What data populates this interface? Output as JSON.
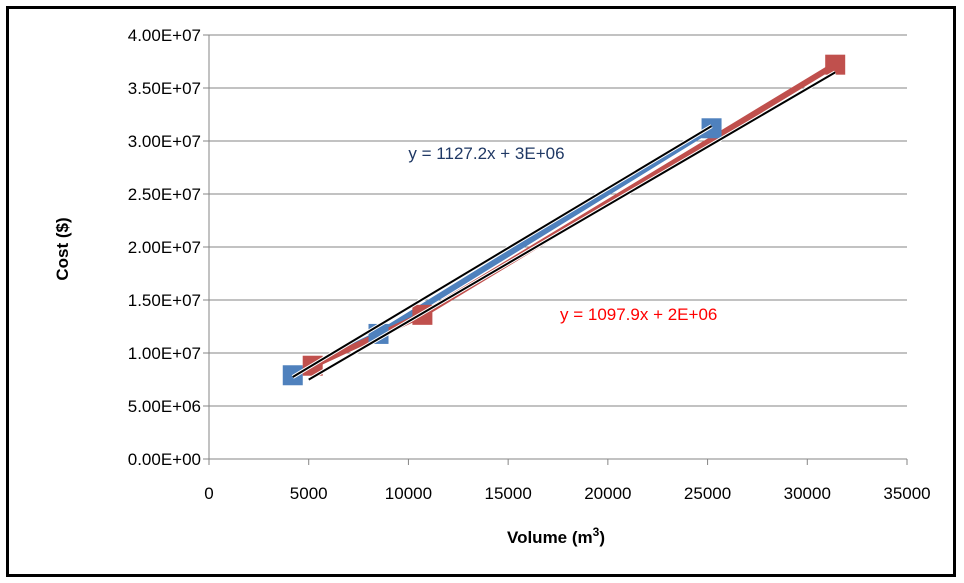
{
  "chart_data": {
    "type": "scatter",
    "title": "",
    "xlabel": "Volume (m",
    "xlabel_sup": "3",
    "xlabel_end": ")",
    "ylabel": "Cost ($)",
    "xlim": [
      0,
      35000
    ],
    "ylim": [
      0,
      40000000
    ],
    "x_ticks": [
      0,
      5000,
      10000,
      15000,
      20000,
      25000,
      30000,
      35000
    ],
    "x_tick_labels": [
      "0",
      "5000",
      "10000",
      "15000",
      "20000",
      "25000",
      "30000",
      "35000"
    ],
    "y_ticks": [
      0,
      5000000,
      10000000,
      15000000,
      20000000,
      25000000,
      30000000,
      35000000,
      40000000
    ],
    "y_tick_labels": [
      "0.00E+00",
      "5.00E+06",
      "1.00E+07",
      "1.50E+07",
      "2.00E+07",
      "2.50E+07",
      "3.00E+07",
      "3.50E+07",
      "4.00E+07"
    ],
    "grid": true,
    "legend": "none",
    "series": [
      {
        "color": "#4F81BD",
        "marker": "square",
        "points": [
          {
            "x": 4200,
            "y": 7900000
          },
          {
            "x": 8500,
            "y": 11800000
          },
          {
            "x": 25200,
            "y": 31200000
          }
        ],
        "connected": true,
        "trendline": {
          "slope": 1127.2,
          "intercept": 3000000,
          "x_range": [
            4200,
            25200
          ],
          "color": "#000000"
        },
        "equation": "y = 1127.2x + 3E+06",
        "equation_color": "#1F3864",
        "equation_at": {
          "x": 10000,
          "y": 28300000
        }
      },
      {
        "color": "#C0504D",
        "marker": "square",
        "points": [
          {
            "x": 5200,
            "y": 8800000
          },
          {
            "x": 10700,
            "y": 13600000
          },
          {
            "x": 31400,
            "y": 37200000
          }
        ],
        "connected": true,
        "trendline": {
          "slope": 1097.9,
          "intercept": 2000000,
          "x_range": [
            5000,
            31400
          ],
          "color": "#000000"
        },
        "equation": "y = 1097.9x + 2E+06",
        "equation_color": "#FF0000",
        "equation_at": {
          "x": 17600,
          "y": 13100000
        }
      }
    ]
  }
}
